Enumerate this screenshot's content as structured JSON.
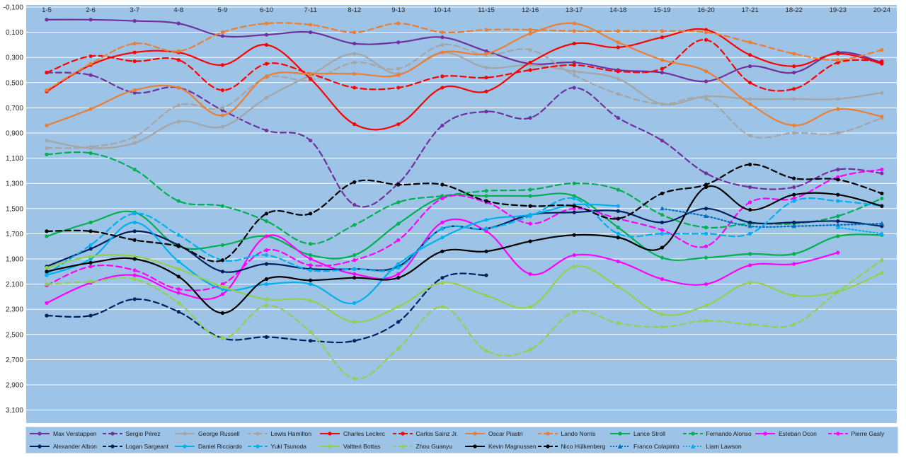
{
  "chart_data": {
    "type": "line",
    "title": "",
    "xlabel": "",
    "ylabel": "",
    "categories": [
      "1-5",
      "2-6",
      "3-7",
      "4-8",
      "5-9",
      "6-10",
      "7-11",
      "8-12",
      "9-13",
      "10-14",
      "11-15",
      "12-16",
      "13-17",
      "14-18",
      "15-19",
      "16-20",
      "17-21",
      "18-22",
      "19-23",
      "20-24"
    ],
    "y_tick_labels": [
      "-0,100",
      "0,100",
      "0,300",
      "0,500",
      "0,700",
      "0,900",
      "1,100",
      "1,300",
      "1,500",
      "1,700",
      "1,900",
      "2,100",
      "2,300",
      "2,500",
      "2,700",
      "2,900",
      "3,100"
    ],
    "ylim": [
      3.2,
      -0.1
    ],
    "y_reversed": true,
    "x_axis_position": "top",
    "grid": true,
    "legend_position": "bottom",
    "plot_background": "#9dc3e6",
    "series": [
      {
        "name": "Max Verstappen",
        "color": "#7030a0",
        "dash": "solid",
        "marker": "circle",
        "values": [
          0.0,
          0.0,
          0.01,
          0.03,
          0.13,
          0.12,
          0.1,
          0.19,
          0.18,
          0.14,
          0.25,
          0.35,
          0.34,
          0.4,
          0.42,
          0.49,
          0.37,
          0.42,
          0.26,
          0.34
        ]
      },
      {
        "name": "Sergio Pérez",
        "color": "#7030a0",
        "dash": "dashed",
        "marker": "circle",
        "values": [
          0.42,
          0.44,
          0.58,
          0.54,
          0.72,
          0.88,
          0.96,
          1.47,
          1.3,
          0.84,
          0.73,
          0.78,
          0.54,
          0.78,
          0.96,
          1.22,
          1.33,
          1.33,
          1.19,
          1.22
        ]
      },
      {
        "name": "George Russell",
        "color": "#a5a5a5",
        "dash": "solid",
        "marker": "circle",
        "values": [
          0.96,
          1.02,
          0.98,
          0.81,
          0.85,
          0.62,
          0.44,
          0.27,
          0.43,
          0.26,
          0.38,
          0.36,
          0.41,
          0.47,
          0.67,
          0.61,
          0.63,
          0.63,
          0.63,
          0.58
        ]
      },
      {
        "name": "Lewis Hamilton",
        "color": "#a5a5a5",
        "dash": "dashed",
        "marker": "circle",
        "values": [
          1.02,
          1.01,
          0.93,
          0.68,
          0.7,
          0.46,
          0.48,
          0.34,
          0.39,
          0.2,
          0.28,
          0.24,
          0.44,
          0.59,
          0.67,
          0.63,
          0.92,
          0.9,
          0.9,
          0.78
        ]
      },
      {
        "name": "Charles Leclerc",
        "color": "#ff0000",
        "dash": "solid",
        "marker": "circle",
        "values": [
          0.57,
          0.36,
          0.26,
          0.26,
          0.36,
          0.2,
          0.47,
          0.83,
          0.83,
          0.54,
          0.57,
          0.34,
          0.19,
          0.22,
          0.14,
          0.08,
          0.28,
          0.37,
          0.27,
          0.35
        ]
      },
      {
        "name": "Carlos Sainz Jr.",
        "color": "#ff0000",
        "dash": "dashed",
        "marker": "circle",
        "values": [
          0.42,
          0.29,
          0.33,
          0.32,
          0.56,
          0.35,
          0.43,
          0.54,
          0.54,
          0.45,
          0.46,
          0.4,
          0.36,
          0.41,
          0.39,
          0.16,
          0.5,
          0.55,
          0.34,
          0.33
        ]
      },
      {
        "name": "Oscar Piastri",
        "color": "#ed7d31",
        "dash": "solid",
        "marker": "circle",
        "values": [
          0.84,
          0.71,
          0.56,
          0.54,
          0.76,
          0.45,
          0.43,
          0.43,
          0.44,
          0.26,
          0.27,
          0.11,
          0.03,
          0.18,
          0.32,
          0.41,
          0.67,
          0.84,
          0.71,
          0.77
        ]
      },
      {
        "name": "Lando Norris",
        "color": "#ed7d31",
        "dash": "dashed",
        "marker": "circle",
        "values": [
          0.56,
          0.35,
          0.19,
          0.25,
          0.1,
          0.03,
          0.04,
          0.1,
          0.03,
          0.1,
          0.08,
          0.08,
          0.09,
          0.09,
          0.09,
          0.1,
          0.18,
          0.27,
          0.32,
          0.24
        ]
      },
      {
        "name": "Lance Stroll",
        "color": "#00b050",
        "dash": "solid",
        "marker": "circle",
        "values": [
          1.72,
          1.61,
          1.53,
          1.8,
          1.79,
          1.72,
          1.87,
          1.87,
          1.62,
          1.41,
          1.4,
          1.4,
          1.4,
          1.65,
          1.89,
          1.89,
          1.86,
          1.86,
          1.72,
          1.71
        ]
      },
      {
        "name": "Fernando Alonso",
        "color": "#00b050",
        "dash": "dashed",
        "marker": "circle",
        "values": [
          1.07,
          1.06,
          1.19,
          1.44,
          1.48,
          1.6,
          1.78,
          1.63,
          1.45,
          1.4,
          1.36,
          1.35,
          1.3,
          1.35,
          1.55,
          1.65,
          1.62,
          1.62,
          1.56,
          1.42
        ]
      },
      {
        "name": "Esteban Ocon",
        "color": "#ff00ff",
        "dash": "solid",
        "marker": "circle",
        "values": [
          2.25,
          2.09,
          2.03,
          2.17,
          2.18,
          1.72,
          1.9,
          2.02,
          2.02,
          1.61,
          1.68,
          2.02,
          1.87,
          1.92,
          2.06,
          2.1,
          1.95,
          1.94,
          1.85,
          null
        ]
      },
      {
        "name": "Pierre Gasly",
        "color": "#ff00ff",
        "dash": "dashed",
        "marker": "circle",
        "values": [
          2.11,
          1.96,
          1.99,
          2.14,
          2.1,
          1.83,
          1.95,
          1.91,
          1.75,
          1.42,
          1.45,
          1.62,
          1.5,
          1.58,
          1.67,
          1.8,
          1.45,
          1.42,
          1.25,
          1.19
        ]
      },
      {
        "name": "Alexander Albon",
        "color": "#002060",
        "dash": "solid",
        "marker": "circle",
        "values": [
          1.96,
          1.82,
          1.68,
          1.79,
          2.0,
          1.94,
          1.98,
          1.98,
          1.96,
          1.66,
          1.66,
          1.55,
          1.53,
          1.52,
          1.61,
          1.5,
          1.61,
          1.61,
          1.6,
          1.64
        ]
      },
      {
        "name": "Logan Sargeant",
        "color": "#002060",
        "dash": "dashed",
        "marker": "circle",
        "values": [
          2.35,
          2.35,
          2.22,
          2.32,
          2.53,
          2.52,
          2.55,
          2.55,
          2.4,
          2.05,
          2.03,
          null,
          null,
          null,
          null,
          null,
          null,
          null,
          null,
          null
        ]
      },
      {
        "name": "Daniel Ricciardo",
        "color": "#00b0f0",
        "dash": "solid",
        "marker": "circle",
        "values": [
          2.03,
          1.9,
          1.61,
          1.92,
          2.14,
          2.1,
          2.1,
          2.25,
          1.94,
          1.73,
          1.59,
          1.55,
          1.47,
          1.48,
          null,
          null,
          null,
          null,
          null,
          null
        ]
      },
      {
        "name": "Yuki Tsunoda",
        "color": "#00b0f0",
        "dash": "dashed",
        "marker": "circle",
        "values": [
          2.02,
          1.79,
          1.54,
          1.71,
          1.91,
          1.87,
          1.99,
          1.98,
          1.97,
          1.66,
          1.66,
          1.56,
          1.42,
          1.7,
          1.7,
          1.7,
          1.7,
          1.44,
          1.44,
          1.48
        ]
      },
      {
        "name": "Valtteri Bottas",
        "color": "#92d050",
        "dash": "solid",
        "marker": "circle",
        "values": [
          1.97,
          1.88,
          1.88,
          1.98,
          2.12,
          2.22,
          2.23,
          2.4,
          2.28,
          2.09,
          2.19,
          2.28,
          1.96,
          2.12,
          2.34,
          2.27,
          2.09,
          2.19,
          2.16,
          2.01
        ]
      },
      {
        "name": "Zhou Guanyu",
        "color": "#92d050",
        "dash": "dashed",
        "marker": "circle",
        "values": [
          2.1,
          2.08,
          2.06,
          2.25,
          2.53,
          2.27,
          2.48,
          2.85,
          2.61,
          2.28,
          2.63,
          2.62,
          2.32,
          2.41,
          2.44,
          2.39,
          2.42,
          2.42,
          2.16,
          1.91
        ]
      },
      {
        "name": "Kevin Magnussen",
        "color": "#000000",
        "dash": "solid",
        "marker": "circle",
        "values": [
          2.0,
          1.93,
          1.9,
          2.04,
          2.33,
          2.06,
          2.07,
          2.05,
          2.05,
          1.84,
          1.84,
          1.76,
          1.71,
          1.73,
          1.81,
          1.33,
          1.51,
          1.39,
          1.39,
          1.48
        ]
      },
      {
        "name": "Nico Hülkenberg",
        "color": "#000000",
        "dash": "dashed",
        "marker": "circle",
        "values": [
          1.68,
          1.68,
          1.75,
          1.8,
          1.91,
          1.54,
          1.54,
          1.29,
          1.31,
          1.31,
          1.44,
          1.48,
          1.48,
          1.58,
          1.38,
          1.31,
          1.15,
          1.26,
          1.27,
          1.38
        ]
      },
      {
        "name": "Franco Colapinto",
        "color": "#0070c0",
        "dash": "dotted",
        "marker": "triangle",
        "values": [
          null,
          null,
          null,
          null,
          null,
          null,
          null,
          null,
          null,
          null,
          null,
          null,
          null,
          null,
          1.5,
          1.56,
          1.64,
          1.64,
          1.63,
          1.62
        ]
      },
      {
        "name": "Liam Lawson",
        "color": "#00b0f0",
        "dash": "dotted",
        "marker": "triangle",
        "values": [
          null,
          null,
          null,
          null,
          null,
          null,
          null,
          null,
          null,
          null,
          null,
          null,
          null,
          null,
          null,
          null,
          null,
          null,
          1.65,
          1.7
        ]
      }
    ]
  }
}
